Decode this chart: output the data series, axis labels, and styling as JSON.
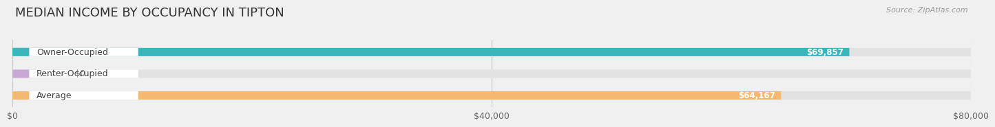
{
  "title": "MEDIAN INCOME BY OCCUPANCY IN TIPTON",
  "source": "Source: ZipAtlas.com",
  "categories": [
    "Owner-Occupied",
    "Renter-Occupied",
    "Average"
  ],
  "values": [
    69857,
    0,
    64167
  ],
  "bar_colors": [
    "#3ab5bb",
    "#c9a8d4",
    "#f5b870"
  ],
  "bar_labels": [
    "$69,857",
    "$0",
    "$64,167"
  ],
  "renter_bar_width": 5000,
  "xlim": [
    0,
    80000
  ],
  "xticks": [
    0,
    40000,
    80000
  ],
  "xtick_labels": [
    "$0",
    "$40,000",
    "$80,000"
  ],
  "background_color": "#f0f0f0",
  "bar_bg_color": "#e2e2e2",
  "label_bg_color": "#ffffff",
  "title_fontsize": 13,
  "source_fontsize": 8,
  "label_fontsize": 9,
  "value_fontsize": 8.5,
  "tick_fontsize": 9
}
